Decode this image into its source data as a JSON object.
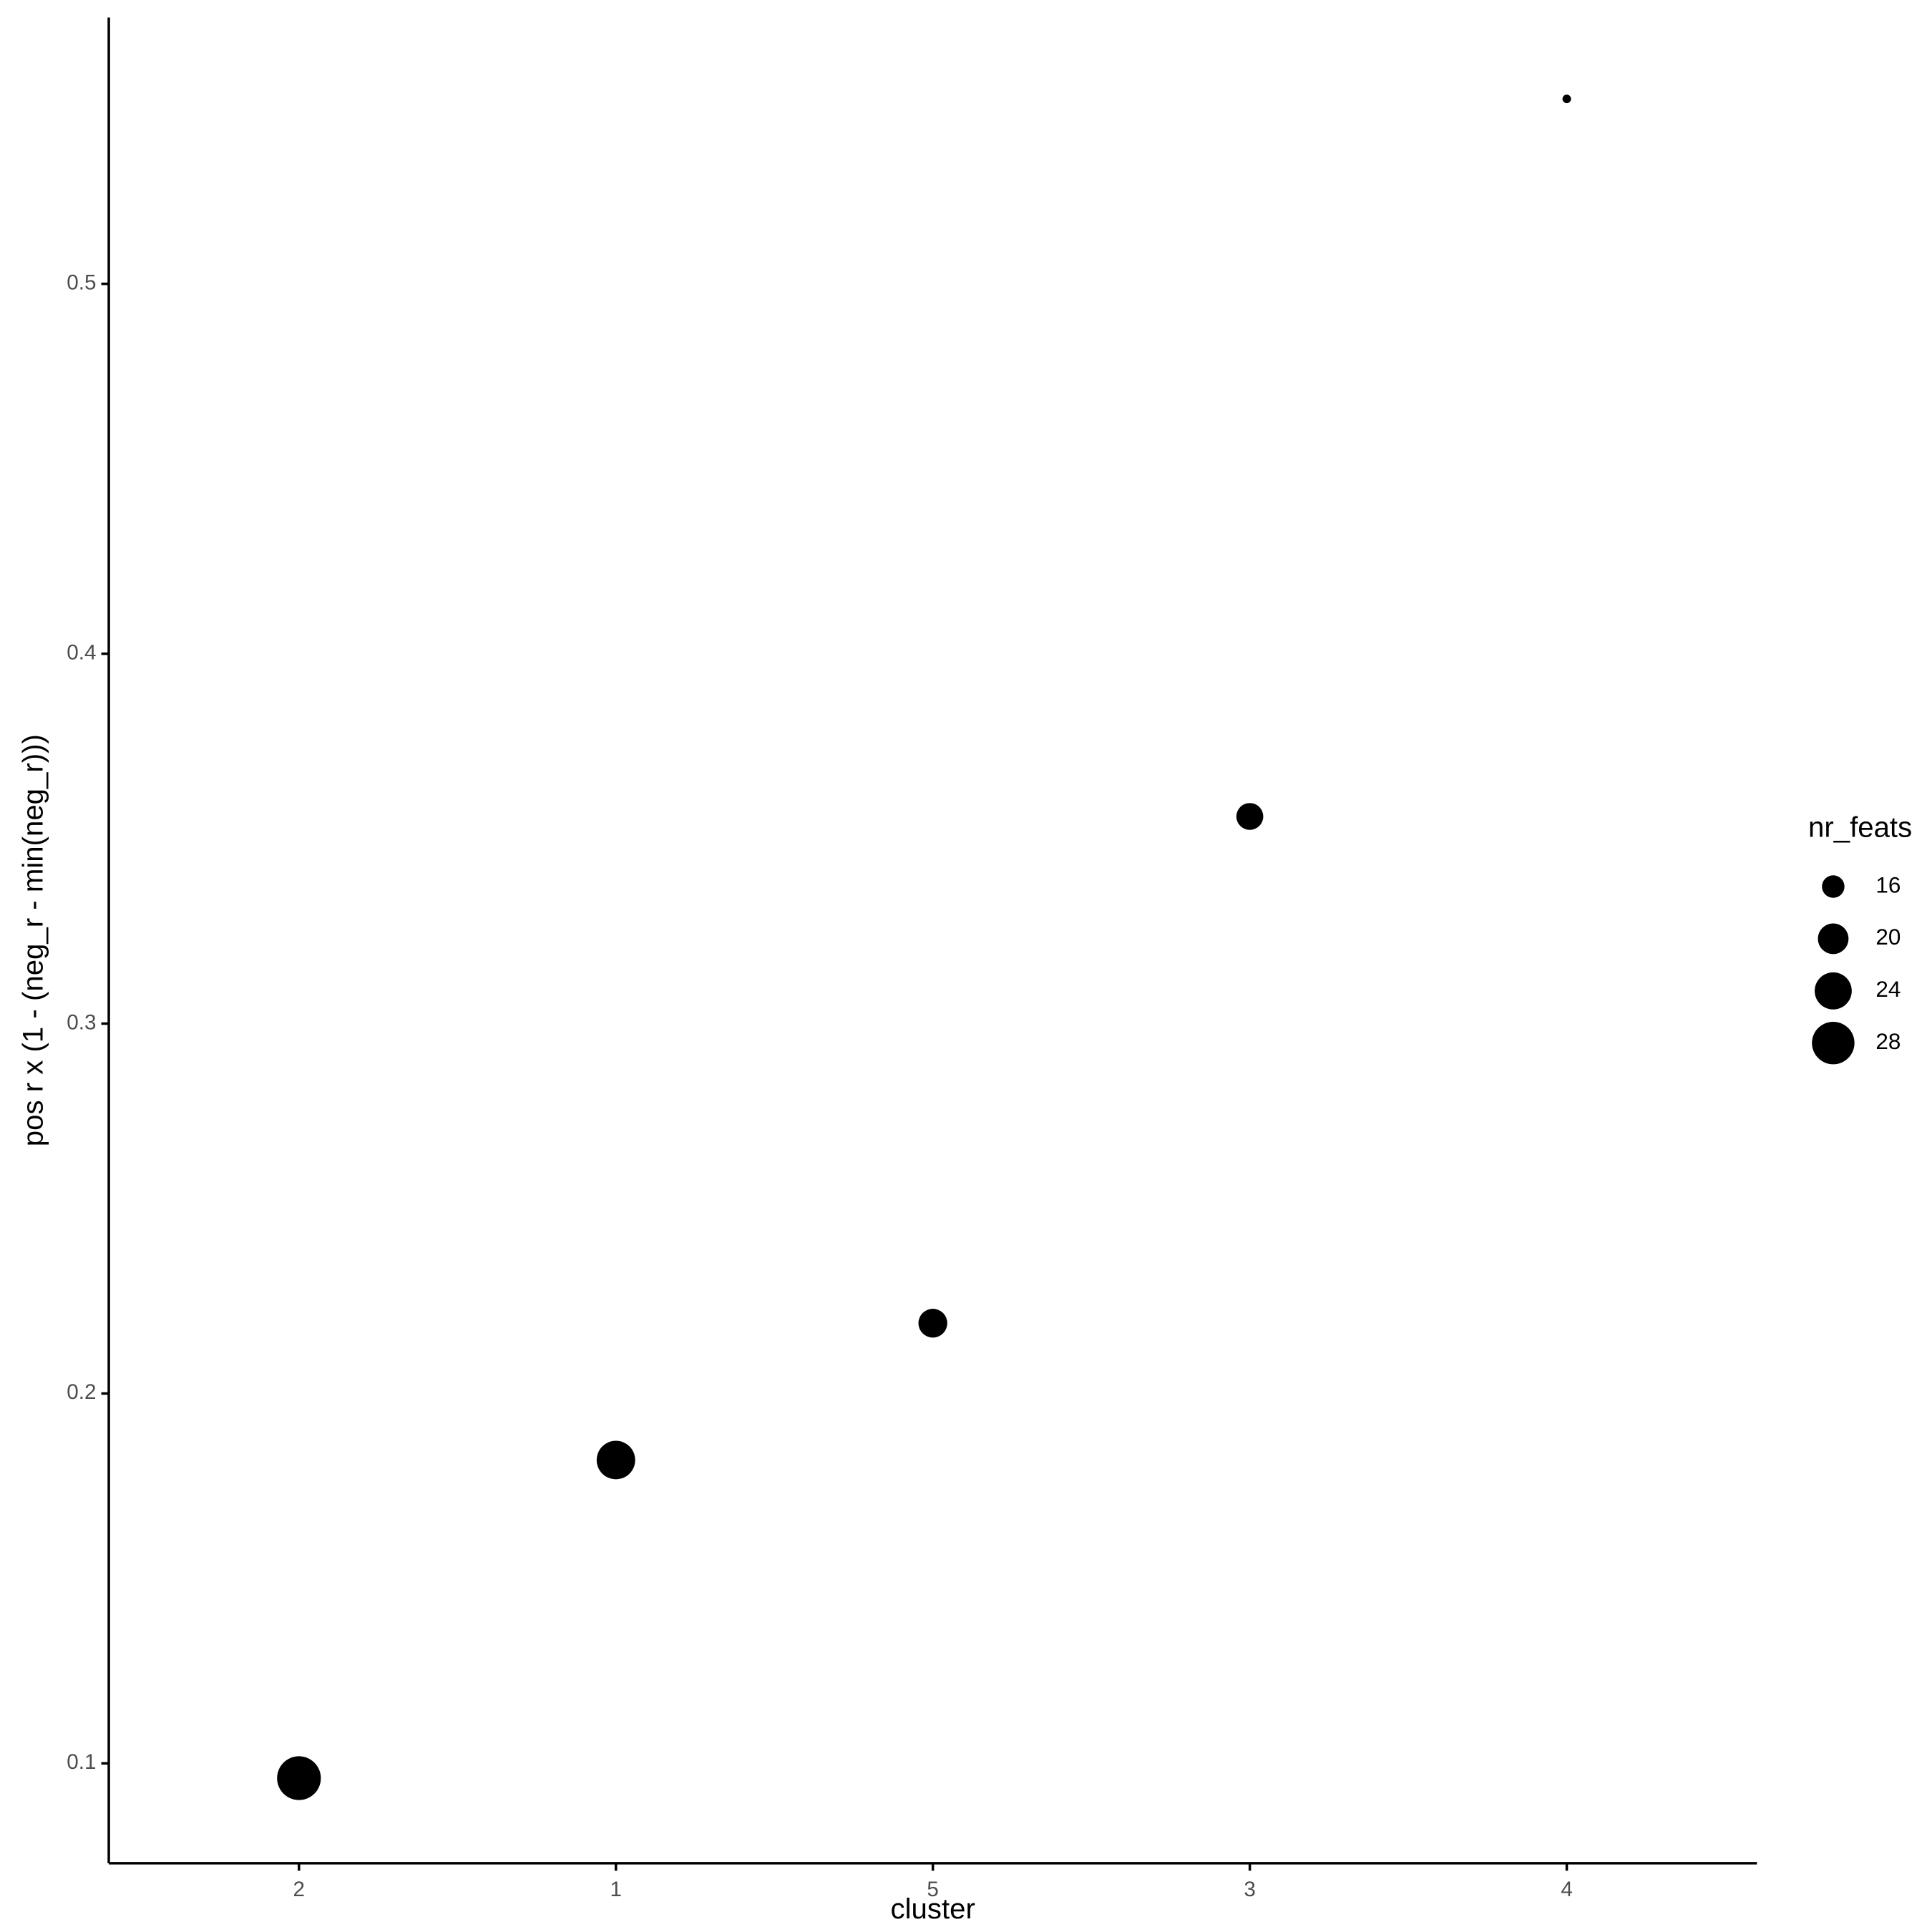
{
  "chart_data": {
    "type": "scatter",
    "x_label": "cluster",
    "y_label": "pos r x (1 - (neg_r - min(neg_r)))",
    "categories": [
      "2",
      "1",
      "5",
      "3",
      "4"
    ],
    "values": [
      0.096,
      0.182,
      0.219,
      0.356,
      0.55
    ],
    "sizes": [
      29,
      25,
      19,
      18,
      12
    ],
    "color": "#000000",
    "ylim": [
      0.073,
      0.572
    ],
    "yticks": [
      0.1,
      0.2,
      0.3,
      0.4,
      0.5
    ],
    "size_legend_title": "nr_feats",
    "size_legend": [
      16,
      20,
      24,
      28
    ],
    "grid": false
  }
}
